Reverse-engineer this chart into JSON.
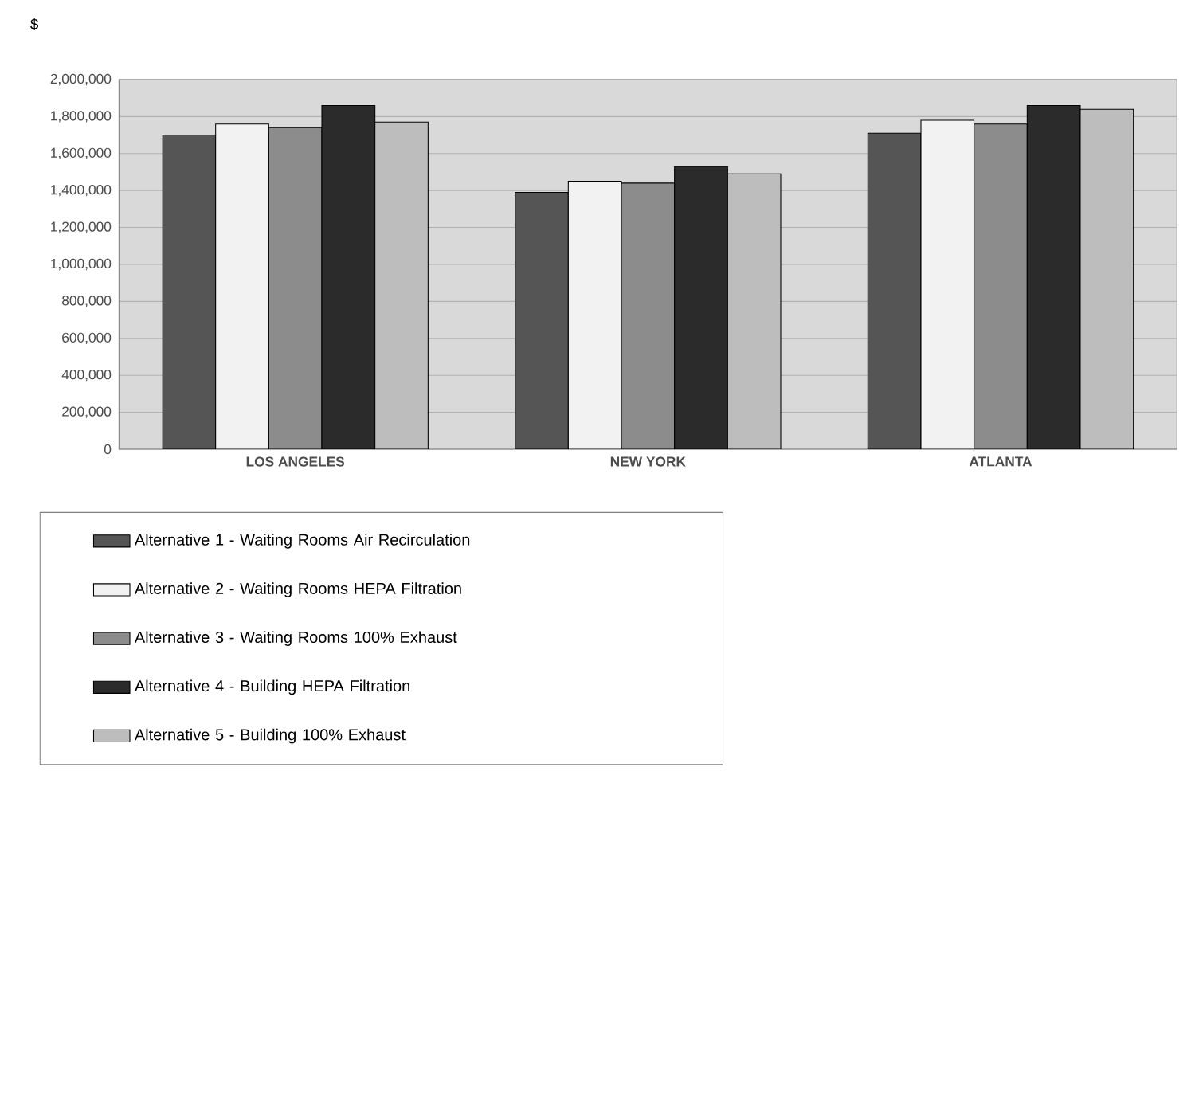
{
  "chart_data": {
    "type": "bar",
    "ylabel": "$",
    "categories": [
      "LOS ANGELES",
      "NEW YORK",
      "ATLANTA"
    ],
    "series": [
      {
        "name": "Alternative 1 -  Waiting Rooms  Air Recirculation",
        "color": "#555555",
        "values": [
          1700000,
          1390000,
          1710000
        ]
      },
      {
        "name": "Alternative 2 -  Waiting Rooms HEPA Filtration",
        "color": "#f2f2f2",
        "values": [
          1760000,
          1450000,
          1780000
        ]
      },
      {
        "name": "Alternative 3 -  Waiting Rooms 100% Exhaust",
        "color": "#8c8c8c",
        "values": [
          1740000,
          1440000,
          1760000
        ]
      },
      {
        "name": "Alternative 4 -  Building HEPA Filtration",
        "color": "#2b2b2b",
        "values": [
          1860000,
          1530000,
          1860000
        ]
      },
      {
        "name": "Alternative 5 -  Building 100% Exhaust",
        "color": "#bdbdbd",
        "values": [
          1770000,
          1490000,
          1840000
        ]
      }
    ],
    "ylim": [
      0,
      2000000
    ],
    "yticks": [
      {
        "value": 0,
        "label": "0"
      },
      {
        "value": 200000,
        "label": "200,000"
      },
      {
        "value": 400000,
        "label": "400,000"
      },
      {
        "value": 600000,
        "label": "600,000"
      },
      {
        "value": 800000,
        "label": "800,000"
      },
      {
        "value": 1000000,
        "label": "1,000,000"
      },
      {
        "value": 1200000,
        "label": "1,200,000"
      },
      {
        "value": 1400000,
        "label": "1,400,000"
      },
      {
        "value": 1600000,
        "label": "1,600,000"
      },
      {
        "value": 1800000,
        "label": "1,800,000"
      },
      {
        "value": 2000000,
        "label": "2,000,000"
      }
    ],
    "grid": "y",
    "legend": "bottom left"
  }
}
